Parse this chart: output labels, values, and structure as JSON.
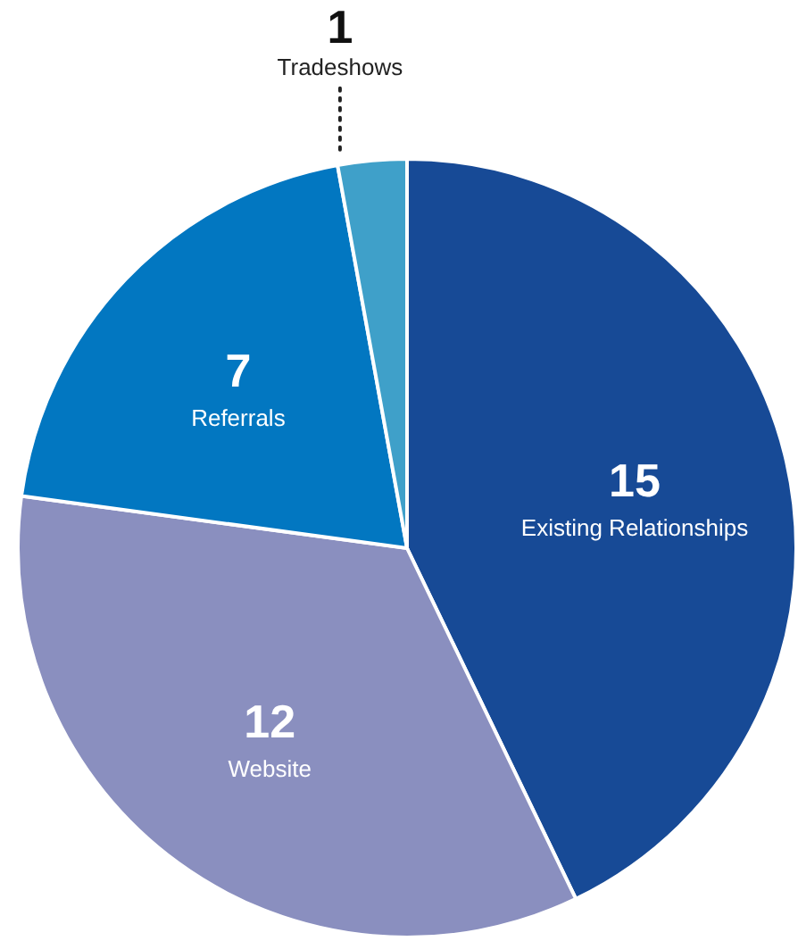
{
  "chart_data": {
    "type": "pie",
    "categories": [
      "Existing Relationships",
      "Website",
      "Referrals",
      "Tradeshows"
    ],
    "values": [
      15,
      12,
      7,
      1
    ],
    "colors": [
      "#174a96",
      "#8a8fbf",
      "#0277c1",
      "#3fa0c9"
    ],
    "data_labels": true
  }
}
